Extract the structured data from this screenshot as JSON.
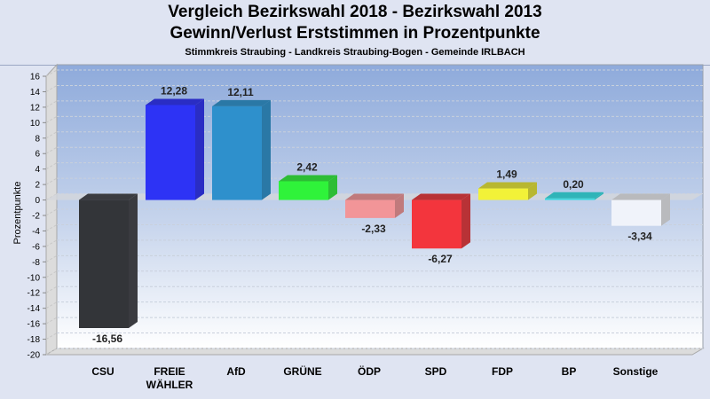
{
  "chart_data": {
    "type": "bar",
    "title": "Vergleich Bezirkswahl 2018 - Bezirkswahl 2013",
    "subtitle": "Gewinn/Verlust Erststimmen in Prozentpunkte",
    "subsubtitle": "Stimmkreis Straubing - Landkreis Straubing-Bogen - Gemeinde IRLBACH",
    "xlabel": "",
    "ylabel": "Prozentpunkte",
    "ylim": [
      -20,
      16
    ],
    "yticks": [
      16,
      14,
      12,
      10,
      8,
      6,
      4,
      2,
      0,
      -2,
      -4,
      -6,
      -8,
      -10,
      -12,
      -14,
      -16,
      -18,
      -20
    ],
    "ytick_labels": [
      "16",
      "14",
      "12",
      "10",
      "8",
      "6",
      "4",
      "2",
      "0",
      "-2",
      "-4",
      "-6",
      "-8",
      "-10",
      "-12",
      "-14",
      "-16",
      "-18",
      "-20"
    ],
    "grid": true,
    "categories": [
      [
        "CSU"
      ],
      [
        "FREIE",
        "WÄHLER"
      ],
      [
        "AfD"
      ],
      [
        "GRÜNE"
      ],
      [
        "ÖDP"
      ],
      [
        "SPD"
      ],
      [
        "FDP"
      ],
      [
        "BP"
      ],
      [
        "Sonstige"
      ]
    ],
    "values": [
      -16.56,
      12.28,
      12.11,
      2.42,
      -2.33,
      -6.27,
      1.49,
      0.2,
      -3.34
    ],
    "value_labels": [
      "-16,56",
      "12,28",
      "12,11",
      "2,42",
      "-2,33",
      "-6,27",
      "1,49",
      "0,20",
      "-3,34"
    ],
    "colors": [
      "#333539",
      "#2d33f5",
      "#2e90cc",
      "#2ff33a",
      "#f29598",
      "#f3353d",
      "#f2f238",
      "#38d8de",
      "#f0f3fa"
    ],
    "side_colors": [
      "#3a3b40",
      "#2a2dc4",
      "#2a78a6",
      "#2dbd35",
      "#c07a7c",
      "#b83236",
      "#b8b730",
      "#2fb4b8",
      "#b9babd"
    ]
  }
}
